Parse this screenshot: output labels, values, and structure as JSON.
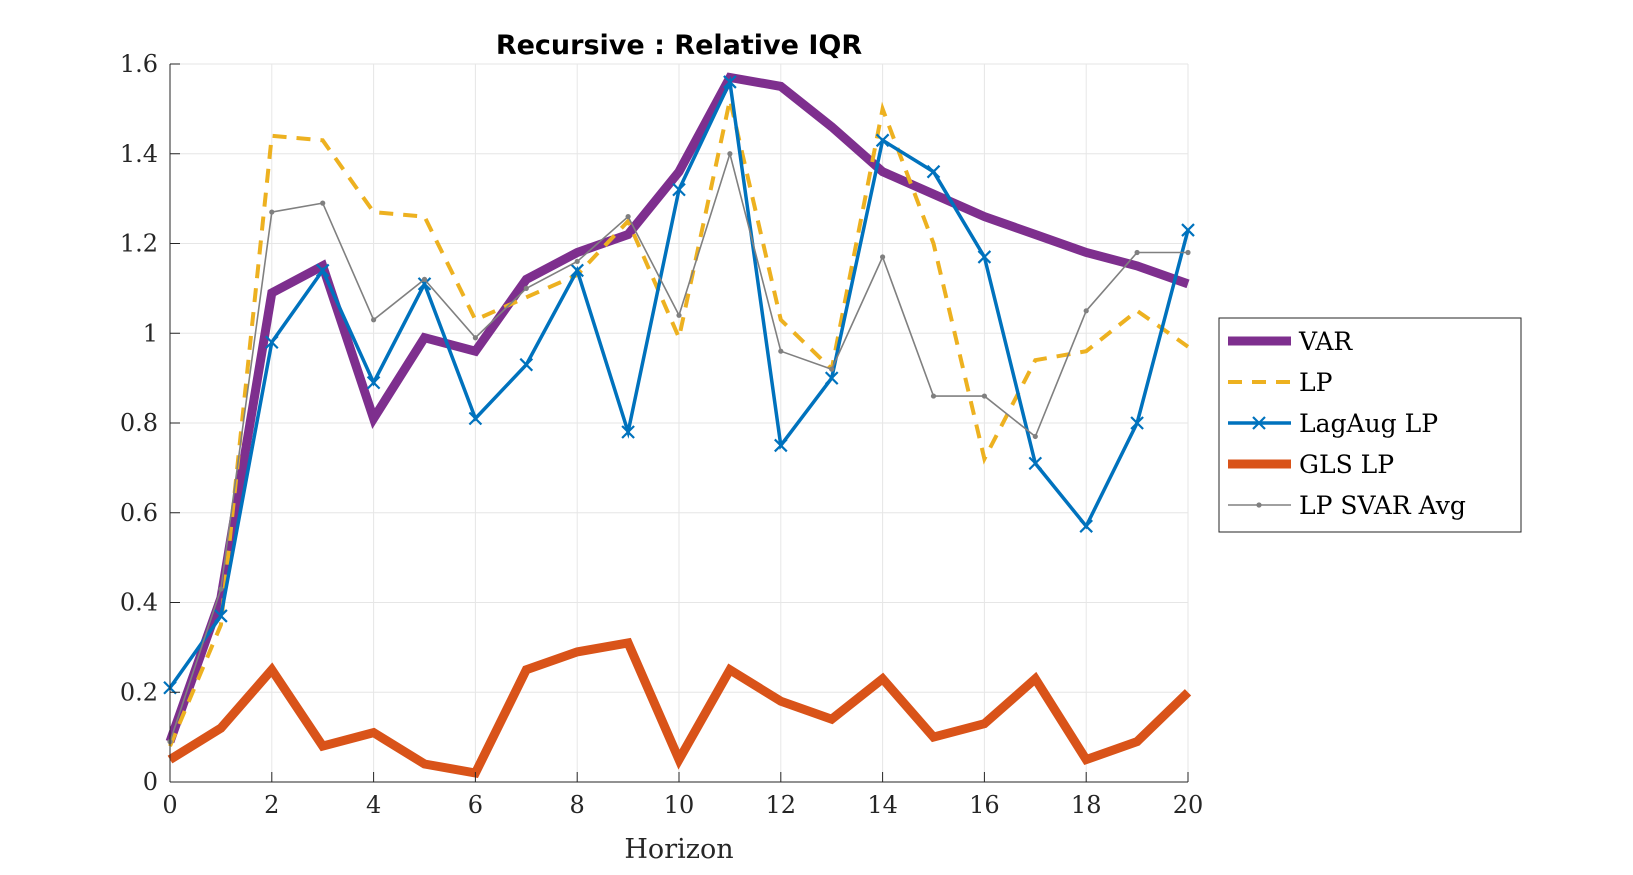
{
  "chart_data": {
    "type": "line",
    "title": "Recursive : Relative IQR",
    "xlabel": "Horizon",
    "ylabel": "",
    "xlim": [
      0,
      20
    ],
    "ylim": [
      0,
      1.6
    ],
    "x_ticks": [
      0,
      2,
      4,
      6,
      8,
      10,
      12,
      14,
      16,
      18,
      20
    ],
    "x_tick_labels": [
      "0",
      "2",
      "4",
      "6",
      "8",
      "10",
      "12",
      "14",
      "16",
      "18",
      "20"
    ],
    "y_ticks": [
      0,
      0.2,
      0.4,
      0.6,
      0.8,
      1,
      1.2,
      1.4,
      1.6
    ],
    "y_tick_labels": [
      "0",
      "0.2",
      "0.4",
      "0.6",
      "0.8",
      "1",
      "1.2",
      "1.4",
      "1.6"
    ],
    "grid": true,
    "legend_position": "right-outside",
    "x": [
      0,
      1,
      2,
      3,
      4,
      5,
      6,
      7,
      8,
      9,
      10,
      11,
      12,
      13,
      14,
      15,
      16,
      17,
      18,
      19,
      20
    ],
    "series": [
      {
        "name": "VAR",
        "color": "#7e2f8e",
        "style": "solid-thick",
        "values": [
          0.09,
          0.41,
          1.09,
          1.15,
          0.81,
          0.99,
          0.96,
          1.12,
          1.18,
          1.22,
          1.36,
          1.57,
          1.55,
          1.46,
          1.36,
          1.31,
          1.26,
          1.22,
          1.18,
          1.15,
          1.11
        ]
      },
      {
        "name": "LP",
        "color": "#edb120",
        "style": "dashed",
        "values": [
          0.08,
          0.35,
          1.44,
          1.43,
          1.27,
          1.26,
          1.03,
          1.08,
          1.13,
          1.25,
          0.99,
          1.52,
          1.03,
          0.92,
          1.5,
          1.2,
          0.72,
          0.94,
          0.96,
          1.05,
          0.97
        ]
      },
      {
        "name": "LagAug LP",
        "color": "#0072bd",
        "style": "solid-x-marker",
        "values": [
          0.21,
          0.37,
          0.98,
          1.14,
          0.89,
          1.11,
          0.81,
          0.93,
          1.14,
          0.78,
          1.32,
          1.56,
          0.75,
          0.9,
          1.43,
          1.36,
          1.17,
          0.71,
          0.57,
          0.8,
          1.23
        ]
      },
      {
        "name": "GLS LP",
        "color": "#d95319",
        "style": "solid-thick",
        "values": [
          0.05,
          0.12,
          0.25,
          0.08,
          0.11,
          0.04,
          0.02,
          0.25,
          0.29,
          0.31,
          0.05,
          0.25,
          0.18,
          0.14,
          0.23,
          0.1,
          0.13,
          0.23,
          0.05,
          0.09,
          0.2
        ]
      },
      {
        "name": "LP SVAR Avg",
        "color": "#808080",
        "style": "solid-thin-dot",
        "values": [
          0.09,
          0.43,
          1.27,
          1.29,
          1.03,
          1.12,
          0.99,
          1.1,
          1.16,
          1.26,
          1.04,
          1.4,
          0.96,
          0.92,
          1.17,
          0.86,
          0.86,
          0.77,
          1.05,
          1.18,
          1.18
        ]
      }
    ]
  }
}
